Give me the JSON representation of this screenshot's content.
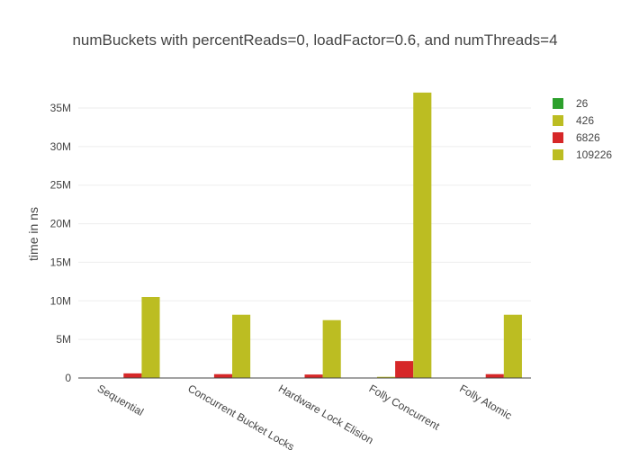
{
  "chart_data": {
    "type": "bar",
    "title": "numBuckets with percentReads=0, loadFactor=0.6, and numThreads=4",
    "xlabel": "",
    "ylabel": "time in ns",
    "categories": [
      "Sequential",
      "Concurrent Bucket Locks",
      "Hardware Lock Elision",
      "Folly Concurrent",
      "Folly Atomic"
    ],
    "ylim": [
      0,
      38500000
    ],
    "yticks": [
      0,
      5000000,
      10000000,
      15000000,
      20000000,
      25000000,
      30000000,
      35000000
    ],
    "ytick_labels": [
      "0",
      "5M",
      "10M",
      "15M",
      "20M",
      "25M",
      "30M",
      "35M"
    ],
    "grid": true,
    "legend_position": "top-right",
    "series": [
      {
        "name": "26",
        "color": "#2ca02c",
        "values": [
          20000,
          20000,
          20000,
          50000,
          20000
        ]
      },
      {
        "name": "426",
        "color": "#bcbd22",
        "values": [
          30000,
          30000,
          30000,
          150000,
          30000
        ]
      },
      {
        "name": "6826",
        "color": "#d62728",
        "values": [
          600000,
          500000,
          450000,
          2200000,
          500000
        ]
      },
      {
        "name": "109226",
        "color": "#bcbd22",
        "values": [
          10500000,
          8200000,
          7500000,
          37000000,
          8200000
        ]
      }
    ]
  }
}
